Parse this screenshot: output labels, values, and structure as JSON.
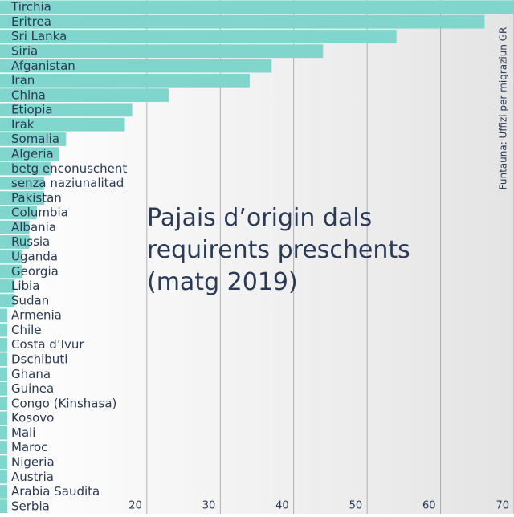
{
  "chart_data": {
    "type": "bar",
    "orientation": "horizontal",
    "title": "Pajais d’origin dals requirents preschents (matg 2019)",
    "source": "Funtauna: Uffizi per migraziun GR",
    "categories": [
      "Tirchia",
      "Eritrea",
      "Sri Lanka",
      "Siria",
      "Afganistan",
      "Iran",
      "China",
      "Etiopia",
      "Irak",
      "Somalia",
      "Algeria",
      "betg enconuschent",
      "senza naziunalitad",
      "Pakistan",
      "Columbia",
      "Albania",
      "Russia",
      "Uganda",
      "Georgia",
      "Libia",
      "Sudan",
      "Armenia",
      "Chile",
      "Costa d’Ivur",
      "Dschibuti",
      "Ghana",
      "Guinea",
      "Congo (Kinshasa)",
      "Kosovo",
      "Mali",
      "Maroc",
      "Nigeria",
      "Austria",
      "Arabia Saudita",
      "Serbia"
    ],
    "values": [
      70,
      66,
      54,
      44,
      37,
      34,
      23,
      18,
      17,
      9,
      8,
      7,
      6,
      6,
      5,
      4,
      4,
      3,
      3,
      2,
      2,
      1,
      1,
      1,
      1,
      1,
      1,
      1,
      1,
      1,
      1,
      1,
      1,
      1,
      1
    ],
    "color": "#80d6cc",
    "xlim": [
      0,
      70
    ],
    "xticks": [
      20,
      30,
      40,
      50,
      60,
      70
    ],
    "grid": true
  }
}
